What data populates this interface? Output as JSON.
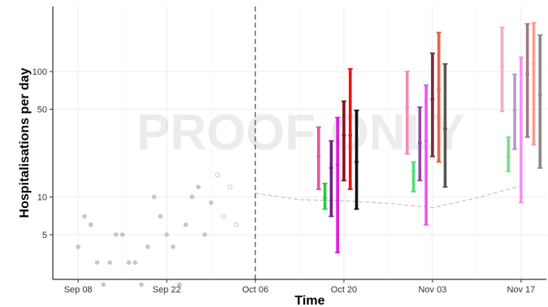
{
  "chart_data": {
    "type": "scatter",
    "xlabel": "Time",
    "ylabel": "Hospitalisations per day",
    "watermark": "PROOF ONLY",
    "x_ticks": [
      "Sep 08",
      "Sep 22",
      "Oct 06",
      "Oct 20",
      "Nov 03",
      "Nov 17"
    ],
    "x_tick_dates": [
      "2020-09-08",
      "2020-09-22",
      "2020-10-06",
      "2020-10-20",
      "2020-11-03",
      "2020-11-17"
    ],
    "xlim": [
      "2020-09-04",
      "2020-11-21"
    ],
    "y_scale": "log",
    "y_ticks": [
      5,
      10,
      50,
      100
    ],
    "y_tick_labels": [
      "5",
      "10",
      "50",
      "100"
    ],
    "ylim": [
      2.2,
      330
    ],
    "grid": true,
    "cutoff_date": "2020-10-06",
    "observed_filled": [
      {
        "date": "2020-09-08",
        "value": 4
      },
      {
        "date": "2020-09-09",
        "value": 7
      },
      {
        "date": "2020-09-10",
        "value": 6
      },
      {
        "date": "2020-09-11",
        "value": 3
      },
      {
        "date": "2020-09-12",
        "value": 2
      },
      {
        "date": "2020-09-13",
        "value": 3
      },
      {
        "date": "2020-09-14",
        "value": 5
      },
      {
        "date": "2020-09-15",
        "value": 5
      },
      {
        "date": "2020-09-16",
        "value": 3
      },
      {
        "date": "2020-09-17",
        "value": 3
      },
      {
        "date": "2020-09-18",
        "value": 2
      },
      {
        "date": "2020-09-19",
        "value": 4
      },
      {
        "date": "2020-09-20",
        "value": 10
      },
      {
        "date": "2020-09-21",
        "value": 7
      },
      {
        "date": "2020-09-22",
        "value": 5
      },
      {
        "date": "2020-09-23",
        "value": 4
      },
      {
        "date": "2020-09-24",
        "value": 2
      },
      {
        "date": "2020-09-25",
        "value": 6
      },
      {
        "date": "2020-09-26",
        "value": 10
      },
      {
        "date": "2020-09-27",
        "value": 12
      },
      {
        "date": "2020-09-28",
        "value": 5
      },
      {
        "date": "2020-09-29",
        "value": 9
      }
    ],
    "observed_open": [
      {
        "date": "2020-09-30",
        "value": 15
      },
      {
        "date": "2020-10-01",
        "value": 7
      },
      {
        "date": "2020-10-02",
        "value": 12
      },
      {
        "date": "2020-10-03",
        "value": 6
      }
    ],
    "baseline": [
      {
        "date": "2020-10-06",
        "value": 10.7
      },
      {
        "date": "2020-10-13",
        "value": 9.5
      },
      {
        "date": "2020-10-20",
        "value": 9.3
      },
      {
        "date": "2020-10-27",
        "value": 8.9
      },
      {
        "date": "2020-11-03",
        "value": 8.2
      },
      {
        "date": "2020-11-10",
        "value": 9.8
      },
      {
        "date": "2020-11-17",
        "value": 12.3
      }
    ],
    "forecasts": [
      {
        "date": "2020-10-16",
        "color": "#e8559a",
        "low": 11.5,
        "mid": 21,
        "high": 36
      },
      {
        "date": "2020-10-17",
        "color": "#22cc44",
        "low": 8.0,
        "mid": 9.8,
        "high": 12.8
      },
      {
        "date": "2020-10-18",
        "color": "#6e1e8c",
        "low": 7.0,
        "mid": 17,
        "high": 28
      },
      {
        "date": "2020-10-19",
        "color": "#e317e3",
        "low": 3.6,
        "mid": 18,
        "high": 43
      },
      {
        "date": "2020-10-20",
        "color": "#8a1020",
        "low": 13.5,
        "mid": 31,
        "high": 58
      },
      {
        "date": "2020-10-21",
        "color": "#ee1010",
        "low": 11.5,
        "mid": 31,
        "high": 105
      },
      {
        "date": "2020-10-22",
        "color": "#111111",
        "low": 8.0,
        "mid": 19,
        "high": 49
      },
      {
        "date": "2020-10-30",
        "color": "#f28ab8",
        "low": 22,
        "mid": 52,
        "high": 100
      },
      {
        "date": "2020-10-31",
        "color": "#55dd77",
        "low": 11,
        "mid": 16,
        "high": 19
      },
      {
        "date": "2020-11-01",
        "color": "#8c4aa5",
        "low": 13.5,
        "mid": 27,
        "high": 52
      },
      {
        "date": "2020-11-02",
        "color": "#ee55ee",
        "low": 6.0,
        "mid": 28,
        "high": 78
      },
      {
        "date": "2020-11-03",
        "color": "#7a2838",
        "low": 21,
        "mid": 60,
        "high": 140
      },
      {
        "date": "2020-11-04",
        "color": "#f06040",
        "low": 19,
        "mid": 72,
        "high": 205
      },
      {
        "date": "2020-11-05",
        "color": "#555555",
        "low": 12,
        "mid": 35,
        "high": 115
      },
      {
        "date": "2020-11-14",
        "color": "#f7aac8",
        "low": 48,
        "mid": 110,
        "high": 225
      },
      {
        "date": "2020-11-15",
        "color": "#77dd88",
        "low": 16,
        "mid": 21,
        "high": 30
      },
      {
        "date": "2020-11-16",
        "color": "#b898d0",
        "low": 24,
        "mid": 49,
        "high": 95
      },
      {
        "date": "2020-11-17",
        "color": "#f590f0",
        "low": 9,
        "mid": 43,
        "high": 130
      },
      {
        "date": "2020-11-18",
        "color": "#a07a80",
        "low": 30,
        "mid": 95,
        "high": 240
      },
      {
        "date": "2020-11-19",
        "color": "#f5a090",
        "low": 26,
        "mid": 115,
        "high": 245
      },
      {
        "date": "2020-11-20",
        "color": "#888888",
        "low": 17,
        "mid": 65,
        "high": 195
      }
    ]
  }
}
